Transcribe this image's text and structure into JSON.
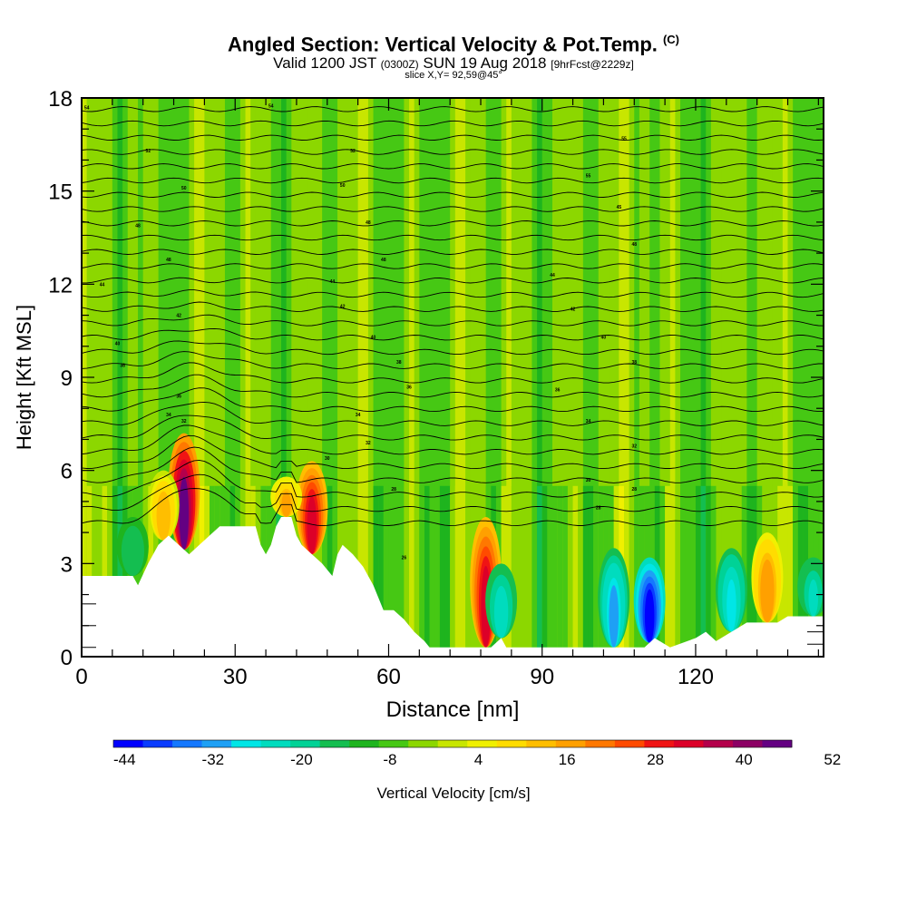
{
  "title": "Angled Section: Vertical Velocity & Pot.Temp.",
  "title_units": "(C)",
  "subtitle": {
    "valid": "Valid 1200 JST",
    "zulu": "(0300Z)",
    "date": "SUN 19 Aug 2018",
    "forecast": "[9hrFcst@2229z]"
  },
  "slice_label": "slice X,Y= 92,59@45°",
  "colorbar": {
    "label": "Vertical Velocity [cm/s]",
    "ticks": [
      "-44",
      "-32",
      "-20",
      "-8",
      "4",
      "16",
      "28",
      "40",
      "52"
    ],
    "colors": [
      "#0000ff",
      "#0a3cff",
      "#1478ff",
      "#1ea0f5",
      "#00e6e6",
      "#00dcbe",
      "#00d296",
      "#14be50",
      "#1eb41e",
      "#46c814",
      "#8cd700",
      "#c8e600",
      "#f0f000",
      "#ffdc00",
      "#ffbe00",
      "#ffa000",
      "#ff7800",
      "#ff4b00",
      "#f01414",
      "#dc0028",
      "#b4004b",
      "#8c0064",
      "#640082"
    ]
  },
  "chart_data": {
    "type": "heatmap",
    "title": "Angled Section: Vertical Velocity & Pot.Temp.",
    "xlabel": "Distance [nm]",
    "ylabel": "Height [Kft MSL]",
    "xlim": [
      0,
      145
    ],
    "ylim": [
      0,
      18
    ],
    "x_ticks": [
      0,
      30,
      60,
      90,
      120
    ],
    "y_ticks": [
      0,
      3,
      6,
      9,
      12,
      15,
      18
    ],
    "variable": "Vertical Velocity [cm/s]",
    "color_range": [
      -44,
      60
    ],
    "contour_variable": "Potential Temperature (C)",
    "contour_labels": [
      {
        "x": 1,
        "y": 17.7,
        "text": "54"
      },
      {
        "x": 37,
        "y": 17.75,
        "text": "54"
      },
      {
        "x": 13,
        "y": 16.3,
        "text": "52"
      },
      {
        "x": 53,
        "y": 16.3,
        "text": "52"
      },
      {
        "x": 106,
        "y": 16.7,
        "text": "55"
      },
      {
        "x": 20,
        "y": 15.1,
        "text": "50"
      },
      {
        "x": 51,
        "y": 15.2,
        "text": "50"
      },
      {
        "x": 99,
        "y": 15.5,
        "text": "55"
      },
      {
        "x": 105,
        "y": 14.5,
        "text": "45"
      },
      {
        "x": 11,
        "y": 13.9,
        "text": "48"
      },
      {
        "x": 56,
        "y": 14.0,
        "text": "48"
      },
      {
        "x": 17,
        "y": 12.8,
        "text": "48"
      },
      {
        "x": 59,
        "y": 12.8,
        "text": "48"
      },
      {
        "x": 108,
        "y": 13.3,
        "text": "48"
      },
      {
        "x": 4,
        "y": 12.0,
        "text": "44"
      },
      {
        "x": 49,
        "y": 12.1,
        "text": "44"
      },
      {
        "x": 92,
        "y": 12.3,
        "text": "44"
      },
      {
        "x": 19,
        "y": 11.0,
        "text": "42"
      },
      {
        "x": 51,
        "y": 11.3,
        "text": "42"
      },
      {
        "x": 96,
        "y": 11.2,
        "text": "42"
      },
      {
        "x": 7,
        "y": 10.1,
        "text": "40"
      },
      {
        "x": 57,
        "y": 10.3,
        "text": "40"
      },
      {
        "x": 102,
        "y": 10.3,
        "text": "40"
      },
      {
        "x": 8,
        "y": 9.4,
        "text": "38"
      },
      {
        "x": 62,
        "y": 9.5,
        "text": "38"
      },
      {
        "x": 108,
        "y": 9.5,
        "text": "38"
      },
      {
        "x": 19,
        "y": 8.4,
        "text": "36"
      },
      {
        "x": 64,
        "y": 8.7,
        "text": "36"
      },
      {
        "x": 93,
        "y": 8.6,
        "text": "36"
      },
      {
        "x": 17,
        "y": 7.8,
        "text": "34"
      },
      {
        "x": 54,
        "y": 7.8,
        "text": "34"
      },
      {
        "x": 99,
        "y": 7.6,
        "text": "34"
      },
      {
        "x": 20,
        "y": 7.6,
        "text": "32"
      },
      {
        "x": 56,
        "y": 6.9,
        "text": "32"
      },
      {
        "x": 108,
        "y": 6.8,
        "text": "32"
      },
      {
        "x": 48,
        "y": 6.4,
        "text": "30"
      },
      {
        "x": 99,
        "y": 5.7,
        "text": "30"
      },
      {
        "x": 108,
        "y": 5.4,
        "text": "28"
      },
      {
        "x": 61,
        "y": 5.4,
        "text": "28"
      },
      {
        "x": 101,
        "y": 4.8,
        "text": "28"
      },
      {
        "x": 63,
        "y": 3.2,
        "text": "26"
      }
    ],
    "terrain_surface": [
      [
        0,
        2.6
      ],
      [
        10,
        2.6
      ],
      [
        11,
        2.3
      ],
      [
        13,
        3.0
      ],
      [
        15,
        3.6
      ],
      [
        17,
        3.9
      ],
      [
        19,
        3.6
      ],
      [
        21,
        3.3
      ],
      [
        23,
        3.6
      ],
      [
        25,
        3.9
      ],
      [
        27,
        4.2
      ],
      [
        30,
        4.2
      ],
      [
        34,
        4.2
      ],
      [
        35,
        3.6
      ],
      [
        36,
        3.3
      ],
      [
        37,
        3.6
      ],
      [
        38,
        4.2
      ],
      [
        39,
        4.5
      ],
      [
        41,
        4.5
      ],
      [
        42,
        3.9
      ],
      [
        43,
        3.6
      ],
      [
        45,
        3.3
      ],
      [
        47,
        3.0
      ],
      [
        49,
        2.6
      ],
      [
        50,
        3.3
      ],
      [
        51,
        3.6
      ],
      [
        53,
        3.3
      ],
      [
        55,
        2.9
      ],
      [
        57,
        2.3
      ],
      [
        59,
        1.5
      ],
      [
        61,
        1.5
      ],
      [
        63,
        1.2
      ],
      [
        65,
        0.8
      ],
      [
        67,
        0.5
      ],
      [
        68,
        0.3
      ],
      [
        80,
        0.3
      ],
      [
        82,
        0.6
      ],
      [
        83,
        0.3
      ],
      [
        110,
        0.3
      ],
      [
        112,
        0.6
      ],
      [
        115,
        0.3
      ],
      [
        120,
        0.6
      ],
      [
        122,
        0.8
      ],
      [
        124,
        0.5
      ],
      [
        130,
        1.1
      ],
      [
        136,
        1.1
      ],
      [
        138,
        1.3
      ],
      [
        145,
        1.3
      ]
    ],
    "updraft_cores": [
      {
        "x": 20,
        "ztop": 7.2,
        "w": 56
      },
      {
        "x": 45,
        "ztop": 6.3,
        "w": 44
      },
      {
        "x": 79,
        "ztop": 4.5,
        "w": 46
      },
      {
        "x": 134,
        "ztop": 4.0,
        "w": 28
      },
      {
        "x": 40,
        "ztop": 5.8,
        "w": 24
      },
      {
        "x": 16,
        "ztop": 6.0,
        "w": 22
      }
    ],
    "downdraft_cores": [
      {
        "x": 111,
        "ztop": 3.2,
        "w": -40
      },
      {
        "x": 104,
        "ztop": 3.5,
        "w": -26
      },
      {
        "x": 127,
        "ztop": 3.5,
        "w": -22
      },
      {
        "x": 82,
        "ztop": 3.0,
        "w": -20
      },
      {
        "x": 143,
        "ztop": 3.2,
        "w": -18
      },
      {
        "x": 10,
        "ztop": 4.5,
        "w": -12
      }
    ]
  }
}
